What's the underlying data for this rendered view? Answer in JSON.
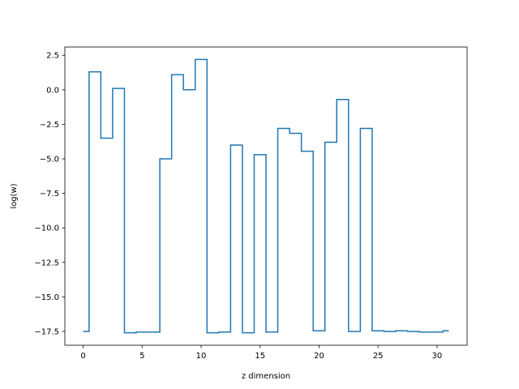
{
  "chart_data": {
    "type": "line",
    "drawstyle": "steps-mid",
    "xlabel": "z dimension",
    "ylabel": "log(w)",
    "xlim": [
      -1.55,
      32.55
    ],
    "ylim": [
      -18.5,
      3.1
    ],
    "xticks": [
      0,
      5,
      10,
      15,
      20,
      25,
      30
    ],
    "yticks": [
      2.5,
      0.0,
      -2.5,
      -5.0,
      -7.5,
      -10.0,
      -12.5,
      -15.0,
      -17.5
    ],
    "ytick_labels": [
      "2.5",
      "0.0",
      "−2.5",
      "−5.0",
      "−7.5",
      "−10.0",
      "−12.5",
      "−15.0",
      "−17.5"
    ],
    "grid": false,
    "line_color": "#1f77b4",
    "series": [
      {
        "x": [
          0,
          1,
          2,
          3,
          4,
          5,
          6,
          7,
          8,
          9,
          10,
          11,
          12,
          13,
          14,
          15,
          16,
          17,
          18,
          19,
          20,
          21,
          22,
          23,
          24,
          25,
          26,
          27,
          28,
          29,
          30,
          31
        ],
        "values": [
          -17.5,
          1.3,
          -3.5,
          0.1,
          -17.6,
          -17.55,
          -17.55,
          -5.0,
          1.1,
          0.0,
          2.2,
          -17.6,
          -17.55,
          -4.0,
          -17.6,
          -4.7,
          -17.55,
          -2.8,
          -3.15,
          -4.45,
          -17.45,
          -3.8,
          -0.7,
          -17.5,
          -2.8,
          -17.45,
          -17.5,
          -17.45,
          -17.5,
          -17.55,
          -17.55,
          -17.45
        ]
      }
    ]
  }
}
